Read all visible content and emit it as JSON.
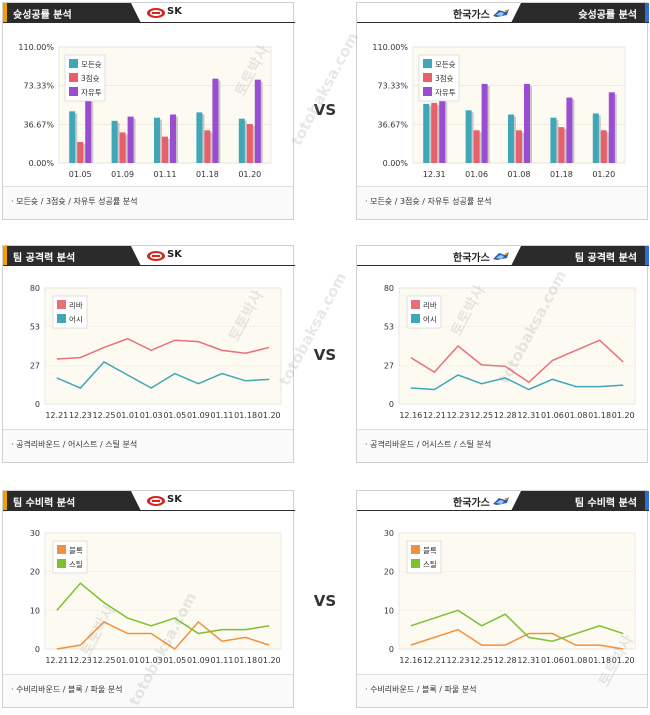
{
  "watermarks": [
    "토토박사",
    "totobaksa.com"
  ],
  "vs_label": "VS",
  "colors": {
    "teal": "#3fa7b8",
    "red": "#e8606c",
    "purple": "#9a4dd0",
    "line_red": "#e8707a",
    "line_teal": "#3fa7b8",
    "orange": "#f2913c",
    "green": "#7cc132",
    "tab_dark": "#2b2b2b",
    "tab_accent_orange": "#f0a000",
    "tab_accent_blue": "#2a6ed8",
    "plot_bg": "#fdfaf2"
  },
  "panels": [
    {
      "id": "sk-shooting",
      "side": "left",
      "tab_title": "슛성공률 분석",
      "team": "SK",
      "logo": "sk-knights-logo-icon",
      "footer": "모든슛 / 3점슛 / 자유투 성공률 분석",
      "chart_data": {
        "type": "bar",
        "categories": [
          "01.05",
          "01.09",
          "01.11",
          "01.18",
          "01.20"
        ],
        "y_ticks": [
          "110.00%",
          "73.33%",
          "36.67%",
          "0.00%"
        ],
        "ylim": [
          0,
          110
        ],
        "series": [
          {
            "name": "모든슛",
            "color": "#3fa7b8",
            "values": [
              49,
              40,
              43,
              48,
              42
            ]
          },
          {
            "name": "3점슛",
            "color": "#e8606c",
            "values": [
              20,
              29,
              25,
              31,
              37
            ]
          },
          {
            "name": "자유투",
            "color": "#9a4dd0",
            "values": [
              60,
              44,
              46,
              80,
              79
            ]
          }
        ]
      }
    },
    {
      "id": "kogas-shooting",
      "side": "right",
      "tab_title": "슛성공률 분석",
      "team": "한국가스",
      "logo": "kogas-pegasus-logo-icon",
      "footer": "모든슛 / 3점슛 / 자유투 성공률 분석",
      "chart_data": {
        "type": "bar",
        "categories": [
          "12.31",
          "01.06",
          "01.08",
          "01.18",
          "01.20"
        ],
        "y_ticks": [
          "110.00%",
          "73.33%",
          "36.67%",
          "0.00%"
        ],
        "ylim": [
          0,
          110
        ],
        "series": [
          {
            "name": "모든슛",
            "color": "#3fa7b8",
            "values": [
              56,
              50,
              46,
              43,
              47
            ]
          },
          {
            "name": "3점슛",
            "color": "#e8606c",
            "values": [
              57,
              31,
              31,
              34,
              31
            ]
          },
          {
            "name": "자유투",
            "color": "#9a4dd0",
            "values": [
              60,
              75,
              75,
              62,
              67
            ]
          }
        ]
      }
    },
    {
      "id": "sk-offense",
      "side": "left",
      "tab_title": "팀 공격력 분석",
      "team": "SK",
      "logo": "sk-knights-logo-icon",
      "footer": "공격리바운드 / 어시스트 / 스틸 분석",
      "chart_data": {
        "type": "line",
        "categories": [
          "12.21",
          "12.23",
          "12.25",
          "01.01",
          "01.03",
          "01.05",
          "01.09",
          "01.11",
          "01.18",
          "01.20"
        ],
        "y_ticks": [
          "80",
          "53",
          "27",
          "0"
        ],
        "ylim": [
          0,
          80
        ],
        "series": [
          {
            "name": "리바",
            "color": "#e8707a",
            "values": [
              31,
              32,
              39,
              45,
              37,
              44,
              43,
              37,
              35,
              39
            ]
          },
          {
            "name": "어시",
            "color": "#3fa7b8",
            "values": [
              18,
              11,
              29,
              20,
              11,
              21,
              14,
              21,
              16,
              17
            ]
          }
        ]
      }
    },
    {
      "id": "kogas-offense",
      "side": "right",
      "tab_title": "팀 공격력 분석",
      "team": "한국가스",
      "logo": "kogas-pegasus-logo-icon",
      "footer": "공격리바운드 / 어시스트 / 스틸 분석",
      "chart_data": {
        "type": "line",
        "categories": [
          "12.16",
          "12.21",
          "12.23",
          "12.25",
          "12.28",
          "12.31",
          "01.06",
          "01.08",
          "01.18",
          "01.20"
        ],
        "y_ticks": [
          "80",
          "53",
          "27",
          "0"
        ],
        "ylim": [
          0,
          80
        ],
        "series": [
          {
            "name": "리바",
            "color": "#e8707a",
            "values": [
              32,
              22,
              40,
              27,
              26,
              15,
              30,
              37,
              44,
              29
            ]
          },
          {
            "name": "어시",
            "color": "#3fa7b8",
            "values": [
              11,
              10,
              20,
              14,
              18,
              10,
              17,
              12,
              12,
              13
            ]
          }
        ]
      }
    },
    {
      "id": "sk-defense",
      "side": "left",
      "tab_title": "팀 수비력 분석",
      "team": "SK",
      "logo": "sk-knights-logo-icon",
      "footer": "수비리바운드 / 블록 / 파울 분석",
      "chart_data": {
        "type": "line",
        "categories": [
          "12.21",
          "12.23",
          "12.25",
          "01.01",
          "01.03",
          "01.05",
          "01.09",
          "01.11",
          "01.18",
          "01.20"
        ],
        "y_ticks": [
          "30",
          "20",
          "10",
          "0"
        ],
        "ylim": [
          0,
          30
        ],
        "series": [
          {
            "name": "블록",
            "color": "#f2913c",
            "values": [
              0,
              1,
              7,
              4,
              4,
              0,
              7,
              2,
              3,
              1
            ]
          },
          {
            "name": "스틸",
            "color": "#7cc132",
            "values": [
              10,
              17,
              12,
              8,
              6,
              8,
              4,
              5,
              5,
              6
            ]
          }
        ]
      }
    },
    {
      "id": "kogas-defense",
      "side": "right",
      "tab_title": "팀 수비력 분석",
      "team": "한국가스",
      "logo": "kogas-pegasus-logo-icon",
      "footer": "수비리바운드 / 블록 / 파울 분석",
      "chart_data": {
        "type": "line",
        "categories": [
          "12.16",
          "12.21",
          "12.23",
          "12.25",
          "12.28",
          "12.31",
          "01.06",
          "01.08",
          "01.18",
          "01.20"
        ],
        "y_ticks": [
          "30",
          "20",
          "10",
          "0"
        ],
        "ylim": [
          0,
          30
        ],
        "series": [
          {
            "name": "블록",
            "color": "#f2913c",
            "values": [
              1,
              3,
              5,
              1,
              1,
              4,
              4,
              1,
              1,
              0
            ]
          },
          {
            "name": "스틸",
            "color": "#7cc132",
            "values": [
              6,
              8,
              10,
              6,
              9,
              3,
              2,
              4,
              6,
              4
            ]
          }
        ]
      }
    }
  ]
}
